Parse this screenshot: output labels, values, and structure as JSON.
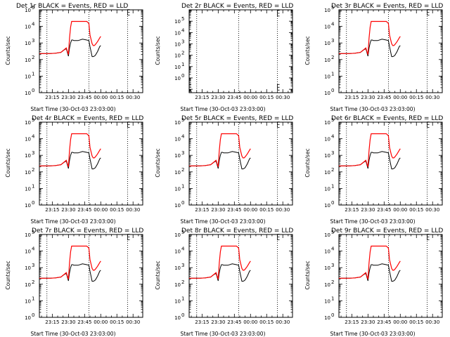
{
  "figure": {
    "ylabel": "Counts/sec",
    "xlabel": "Start Time (30-Oct-03 23:03:00)",
    "xticks": [
      "23:15",
      "23:30",
      "23:45",
      "00:00",
      "00:15",
      "00:30"
    ],
    "yticks": [
      "10",
      "10",
      "10",
      "10",
      "10",
      "10"
    ],
    "yexps": [
      "0",
      "1",
      "2",
      "3",
      "4",
      "5"
    ],
    "colors": {
      "events": "#000000",
      "lld": "#ff0000",
      "background": "#ffffff"
    }
  },
  "panels": [
    {
      "title": "Det 1r BLACK = Events, RED = LLD",
      "xlabel": "Start Time (30-Oct-03 23:03:00)"
    },
    {
      "title": "Det 2r BLACK = Events, RED = LLD",
      "xlabel": "Start Time (30-Oct-03 23:03:00)"
    },
    {
      "title": "Det 3r BLACK = Events, RED = LLD",
      "xlabel": "Start Time (30-Oct-03 23:03:00)"
    },
    {
      "title": "Det 4r BLACK = Events, RED = LLD",
      "xlabel": "Start Time (30-Oct-03 23:03:00)"
    },
    {
      "title": "Det 5r BLACK = Events, RED = LLD",
      "xlabel": "Start Time (30-Oct-03 23:03:00)"
    },
    {
      "title": "Det 6r BLACK = Events, RED = LLD",
      "xlabel": "Start Time (30-Oct-03 23:03:00)"
    },
    {
      "title": "Det 7r BLACK = Events, RED = LLD",
      "xlabel": "Start Time (30-Oct-03 23:03:00)"
    },
    {
      "title": "Det 8r BLACK = Events, RED = LLD",
      "xlabel": "Start Time (30-Oct-03 23:03:00)"
    },
    {
      "title": "Det 9r BLACK = Events, RED = LLD",
      "xlabel": "Start Time (30-Oct-03 23:03:00)"
    }
  ],
  "chart_data": [
    {
      "type": "line",
      "detector": "Det 1r",
      "title": "Det 1r BLACK = Events, RED = LLD",
      "xlabel": "Start Time (30-Oct-03 23:03:00)",
      "ylabel": "Counts/sec",
      "x_minutes": [
        0,
        10,
        15,
        20,
        23,
        25,
        27,
        28,
        29,
        30,
        31,
        32,
        36,
        40,
        44,
        46,
        47,
        49,
        50,
        51,
        52,
        54,
        56,
        57
      ],
      "events": [
        230,
        230,
        240,
        270,
        380,
        450,
        160,
        500,
        1000,
        1500,
        1500,
        1400,
        1400,
        1700,
        1500,
        1400,
        600,
        150,
        150,
        160,
        180,
        300,
        600,
        700
      ],
      "lld": [
        230,
        230,
        240,
        270,
        390,
        500,
        200,
        2000,
        9000,
        20000,
        20000,
        20000,
        20000,
        20000,
        20000,
        15000,
        3000,
        900,
        700,
        700,
        800,
        1200,
        2000,
        2500
      ],
      "ylim": [
        1,
        100000
      ],
      "xlim": [
        0,
        96
      ],
      "yscale": "log",
      "vlines": [
        7,
        46,
        82
      ],
      "markers": [
        {
          "x": 82,
          "y": 70000
        }
      ]
    },
    {
      "type": "line",
      "detector": "Det 2r",
      "title": "Det 2r BLACK = Events, RED = LLD",
      "xlabel": "",
      "ylabel": "Counts/sec",
      "x_minutes": [],
      "events": [],
      "lld": [],
      "ylim": [
        0.05,
        1000000
      ],
      "xlim": [
        0,
        96
      ],
      "yscale": "log",
      "vlines": [
        7,
        46,
        82
      ],
      "markers": [
        {
          "x": 0,
          "y": 0.15
        },
        {
          "x": 82,
          "y": 0.15
        },
        {
          "x": 82,
          "y": 500000
        }
      ]
    },
    {
      "type": "line",
      "detector": "Det 3r",
      "title": "Det 3r BLACK = Events, RED = LLD",
      "xlabel": "",
      "ylabel": "Counts/sec",
      "x_minutes": [
        0,
        10,
        15,
        20,
        23,
        25,
        27,
        28,
        29,
        30,
        31,
        32,
        36,
        40,
        44,
        46,
        47,
        49,
        50,
        51,
        52,
        54,
        56,
        57
      ],
      "events": [
        230,
        230,
        240,
        270,
        380,
        450,
        160,
        500,
        1000,
        1500,
        1500,
        1400,
        1400,
        1700,
        1500,
        1400,
        600,
        150,
        150,
        160,
        180,
        300,
        600,
        700
      ],
      "lld": [
        230,
        230,
        240,
        270,
        390,
        500,
        200,
        2000,
        9000,
        20000,
        20000,
        20000,
        20000,
        20000,
        20000,
        15000,
        3000,
        900,
        700,
        700,
        800,
        1200,
        2000,
        2500
      ],
      "ylim": [
        1,
        100000
      ],
      "xlim": [
        0,
        96
      ],
      "yscale": "log",
      "vlines": [
        7,
        46,
        82
      ],
      "markers": [
        {
          "x": 82,
          "y": 70000
        }
      ]
    },
    {
      "type": "line",
      "detector": "Det 4r",
      "title": "Det 4r BLACK = Events, RED = LLD",
      "xlabel": "",
      "ylabel": "Counts/sec",
      "x_minutes": [
        0,
        10,
        15,
        20,
        23,
        25,
        27,
        28,
        29,
        30,
        31,
        32,
        36,
        40,
        44,
        46,
        47,
        49,
        50,
        51,
        52,
        54,
        56,
        57
      ],
      "events": [
        230,
        230,
        240,
        270,
        380,
        450,
        160,
        500,
        1000,
        1500,
        1500,
        1400,
        1400,
        1700,
        1500,
        1400,
        600,
        150,
        150,
        160,
        180,
        300,
        600,
        700
      ],
      "lld": [
        230,
        230,
        240,
        270,
        390,
        500,
        200,
        2000,
        9000,
        20000,
        20000,
        20000,
        20000,
        20000,
        20000,
        15000,
        3000,
        900,
        700,
        700,
        800,
        1200,
        2000,
        2500
      ],
      "ylim": [
        1,
        100000
      ],
      "xlim": [
        0,
        96
      ],
      "yscale": "log",
      "vlines": [
        7,
        46,
        82
      ],
      "markers": [
        {
          "x": 82,
          "y": 70000
        }
      ]
    },
    {
      "type": "line",
      "detector": "Det 5r",
      "title": "Det 5r BLACK = Events, RED = LLD",
      "xlabel": "",
      "ylabel": "Counts/sec",
      "x_minutes": [
        0,
        10,
        15,
        20,
        23,
        25,
        27,
        28,
        29,
        30,
        31,
        32,
        36,
        40,
        44,
        46,
        47,
        49,
        50,
        51,
        52,
        54,
        56,
        57
      ],
      "events": [
        230,
        230,
        240,
        270,
        380,
        450,
        160,
        500,
        1000,
        1500,
        1500,
        1400,
        1400,
        1700,
        1500,
        1400,
        600,
        150,
        150,
        160,
        180,
        300,
        600,
        700
      ],
      "lld": [
        230,
        230,
        240,
        270,
        390,
        500,
        200,
        2000,
        9000,
        20000,
        20000,
        20000,
        20000,
        20000,
        20000,
        15000,
        3000,
        900,
        700,
        700,
        800,
        1200,
        2000,
        2500
      ],
      "ylim": [
        1,
        100000
      ],
      "xlim": [
        0,
        96
      ],
      "yscale": "log",
      "vlines": [
        7,
        46,
        82
      ],
      "markers": [
        {
          "x": 82,
          "y": 70000
        }
      ]
    },
    {
      "type": "line",
      "detector": "Det 6r",
      "title": "Det 6r BLACK = Events, RED = LLD",
      "xlabel": "",
      "ylabel": "Counts/sec",
      "x_minutes": [
        0,
        10,
        15,
        20,
        23,
        25,
        27,
        28,
        29,
        30,
        31,
        32,
        36,
        40,
        44,
        46,
        47,
        49,
        50,
        51,
        52,
        54,
        56,
        57
      ],
      "events": [
        230,
        230,
        240,
        270,
        380,
        450,
        160,
        500,
        1000,
        1500,
        1500,
        1400,
        1400,
        1700,
        1500,
        1400,
        600,
        150,
        150,
        160,
        180,
        300,
        600,
        700
      ],
      "lld": [
        230,
        230,
        240,
        270,
        390,
        500,
        200,
        2000,
        9000,
        20000,
        20000,
        20000,
        20000,
        20000,
        20000,
        15000,
        3000,
        900,
        700,
        700,
        800,
        1200,
        2000,
        2500
      ],
      "ylim": [
        1,
        100000
      ],
      "xlim": [
        0,
        96
      ],
      "yscale": "log",
      "vlines": [
        7,
        46,
        82
      ],
      "markers": [
        {
          "x": 82,
          "y": 70000
        }
      ]
    },
    {
      "type": "line",
      "detector": "Det 7r",
      "title": "Det 7r BLACK = Events, RED = LLD",
      "xlabel": "",
      "ylabel": "Counts/sec",
      "x_minutes": [
        0,
        10,
        15,
        20,
        23,
        25,
        27,
        28,
        29,
        30,
        31,
        32,
        36,
        40,
        44,
        46,
        47,
        49,
        50,
        51,
        52,
        54,
        56,
        57
      ],
      "events": [
        230,
        230,
        240,
        270,
        380,
        450,
        160,
        500,
        1000,
        1500,
        1500,
        1400,
        1400,
        1700,
        1500,
        1400,
        600,
        150,
        150,
        160,
        180,
        300,
        600,
        700
      ],
      "lld": [
        230,
        230,
        240,
        270,
        390,
        500,
        200,
        2000,
        9000,
        20000,
        20000,
        20000,
        20000,
        20000,
        20000,
        15000,
        3000,
        900,
        700,
        700,
        800,
        1200,
        2000,
        2500
      ],
      "ylim": [
        1,
        100000
      ],
      "xlim": [
        0,
        96
      ],
      "yscale": "log",
      "vlines": [
        7,
        46,
        82
      ],
      "markers": [
        {
          "x": 82,
          "y": 70000
        }
      ]
    },
    {
      "type": "line",
      "detector": "Det 8r",
      "title": "Det 8r BLACK = Events, RED = LLD",
      "xlabel": "",
      "ylabel": "Counts/sec",
      "x_minutes": [
        0,
        10,
        15,
        20,
        23,
        25,
        27,
        28,
        29,
        30,
        31,
        32,
        36,
        40,
        44,
        46,
        47,
        49,
        50,
        51,
        52,
        54,
        56,
        57
      ],
      "events": [
        230,
        230,
        240,
        270,
        380,
        450,
        160,
        500,
        1000,
        1500,
        1500,
        1400,
        1400,
        1700,
        1500,
        1400,
        600,
        150,
        150,
        160,
        180,
        300,
        600,
        700
      ],
      "lld": [
        230,
        230,
        240,
        270,
        390,
        500,
        200,
        2000,
        9000,
        20000,
        20000,
        20000,
        20000,
        20000,
        20000,
        15000,
        3000,
        900,
        700,
        700,
        800,
        1200,
        2000,
        2500
      ],
      "ylim": [
        1,
        100000
      ],
      "xlim": [
        0,
        96
      ],
      "yscale": "log",
      "vlines": [
        7,
        46,
        82
      ],
      "markers": [
        {
          "x": 82,
          "y": 70000
        }
      ]
    },
    {
      "type": "line",
      "detector": "Det 9r",
      "title": "Det 9r BLACK = Events, RED = LLD",
      "xlabel": "",
      "ylabel": "Counts/sec",
      "x_minutes": [
        0,
        10,
        15,
        20,
        23,
        25,
        27,
        28,
        29,
        30,
        31,
        32,
        36,
        40,
        44,
        46,
        47,
        49,
        50,
        51,
        52,
        54,
        56,
        57
      ],
      "events": [
        230,
        230,
        240,
        270,
        380,
        450,
        160,
        500,
        1000,
        1500,
        1500,
        1400,
        1400,
        1700,
        1500,
        1400,
        600,
        150,
        150,
        160,
        180,
        300,
        600,
        700
      ],
      "lld": [
        230,
        230,
        240,
        270,
        390,
        500,
        200,
        2000,
        9000,
        20000,
        20000,
        20000,
        20000,
        20000,
        20000,
        15000,
        3000,
        900,
        700,
        700,
        800,
        1200,
        2000,
        2500
      ],
      "ylim": [
        1,
        100000
      ],
      "xlim": [
        0,
        96
      ],
      "yscale": "log",
      "vlines": [
        7,
        46,
        82
      ],
      "markers": [
        {
          "x": 82,
          "y": 70000
        }
      ]
    }
  ]
}
